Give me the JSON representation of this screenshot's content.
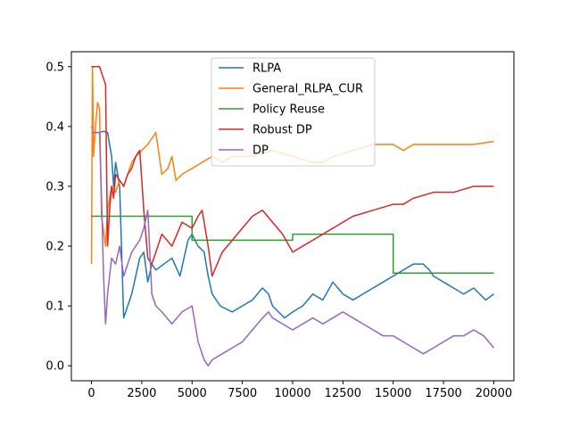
{
  "chart_data": {
    "type": "line",
    "title": "",
    "xlabel": "",
    "ylabel": "",
    "xlim": [
      -1000,
      21000
    ],
    "ylim": [
      -0.025,
      0.525
    ],
    "x_ticks": [
      0,
      2500,
      5000,
      7500,
      10000,
      12500,
      15000,
      17500,
      20000
    ],
    "x_tick_labels": [
      "0",
      "2500",
      "5000",
      "7500",
      "10000",
      "12500",
      "15000",
      "17500",
      "20000"
    ],
    "y_ticks": [
      0.0,
      0.1,
      0.2,
      0.3,
      0.4,
      0.5
    ],
    "y_tick_labels": [
      "0.0",
      "0.1",
      "0.2",
      "0.3",
      "0.4",
      "0.5"
    ],
    "grid": false,
    "legend_position": "top-center",
    "series": [
      {
        "name": "RLPA",
        "color": "#1f77b4",
        "x": [
          0,
          100,
          200,
          400,
          600,
          800,
          1000,
          1100,
          1200,
          1400,
          1600,
          2000,
          2400,
          2600,
          2800,
          3000,
          3200,
          3600,
          4000,
          4400,
          4800,
          5000,
          5300,
          5600,
          5800,
          6000,
          6400,
          7000,
          7500,
          8000,
          8500,
          8800,
          9000,
          9300,
          9600,
          10000,
          10500,
          11000,
          11500,
          12000,
          12500,
          13000,
          13500,
          14000,
          14500,
          15000,
          15500,
          16000,
          16500,
          16800,
          17000,
          17500,
          18000,
          18500,
          19000,
          19300,
          19600,
          20000
        ],
        "y": [
          0.4,
          0.39,
          0.39,
          0.39,
          0.392,
          0.39,
          0.35,
          0.3,
          0.34,
          0.3,
          0.08,
          0.12,
          0.18,
          0.19,
          0.14,
          0.17,
          0.16,
          0.17,
          0.18,
          0.15,
          0.21,
          0.22,
          0.2,
          0.19,
          0.15,
          0.12,
          0.1,
          0.09,
          0.1,
          0.11,
          0.13,
          0.12,
          0.1,
          0.09,
          0.08,
          0.09,
          0.1,
          0.12,
          0.11,
          0.14,
          0.12,
          0.11,
          0.12,
          0.13,
          0.14,
          0.15,
          0.16,
          0.17,
          0.17,
          0.16,
          0.15,
          0.14,
          0.13,
          0.12,
          0.13,
          0.12,
          0.11,
          0.12
        ]
      },
      {
        "name": "General_RLPA_CUR",
        "color": "#ff7f0e",
        "x": [
          0,
          50,
          100,
          200,
          300,
          400,
          500,
          700,
          800,
          1000,
          1200,
          1400,
          1600,
          1800,
          2000,
          2200,
          2500,
          2800,
          3000,
          3200,
          3500,
          3800,
          4000,
          4200,
          4500,
          5000,
          5500,
          6000,
          6500,
          7000,
          8000,
          9000,
          10000,
          11000,
          11500,
          12000,
          13000,
          14000,
          15000,
          15500,
          16000,
          17000,
          18000,
          19000,
          20000
        ],
        "y": [
          0.17,
          0.5,
          0.35,
          0.4,
          0.44,
          0.43,
          0.25,
          0.2,
          0.26,
          0.3,
          0.29,
          0.31,
          0.3,
          0.32,
          0.34,
          0.35,
          0.36,
          0.37,
          0.38,
          0.39,
          0.32,
          0.33,
          0.35,
          0.31,
          0.32,
          0.33,
          0.34,
          0.35,
          0.34,
          0.35,
          0.35,
          0.36,
          0.35,
          0.34,
          0.34,
          0.35,
          0.36,
          0.37,
          0.37,
          0.36,
          0.37,
          0.37,
          0.37,
          0.37,
          0.375
        ]
      },
      {
        "name": "Policy Reuse",
        "color": "#2ca02c",
        "x": [
          0,
          5000,
          5000,
          10000,
          10000,
          15000,
          15000,
          20000
        ],
        "y": [
          0.25,
          0.25,
          0.21,
          0.21,
          0.22,
          0.22,
          0.155,
          0.155
        ]
      },
      {
        "name": "Robust DP",
        "color": "#d62728",
        "x": [
          0,
          200,
          400,
          600,
          700,
          800,
          900,
          1000,
          1100,
          1200,
          1400,
          1600,
          1800,
          2000,
          2200,
          2400,
          2600,
          2800,
          3000,
          3500,
          4000,
          4500,
          5000,
          5300,
          5500,
          5800,
          6000,
          6500,
          7000,
          7500,
          8000,
          8500,
          9000,
          9500,
          10000,
          10500,
          11000,
          12000,
          13000,
          14000,
          15000,
          15500,
          16000,
          17000,
          18000,
          19000,
          19500,
          20000
        ],
        "y": [
          0.5,
          0.5,
          0.5,
          0.48,
          0.47,
          0.2,
          0.26,
          0.3,
          0.28,
          0.32,
          0.31,
          0.3,
          0.32,
          0.33,
          0.35,
          0.36,
          0.26,
          0.18,
          0.17,
          0.22,
          0.2,
          0.24,
          0.23,
          0.25,
          0.26,
          0.2,
          0.15,
          0.19,
          0.21,
          0.23,
          0.25,
          0.26,
          0.24,
          0.22,
          0.19,
          0.2,
          0.21,
          0.23,
          0.25,
          0.26,
          0.27,
          0.27,
          0.28,
          0.29,
          0.29,
          0.3,
          0.3,
          0.3
        ]
      },
      {
        "name": "DP",
        "color": "#9467bd",
        "x": [
          0,
          200,
          400,
          500,
          600,
          700,
          800,
          900,
          1000,
          1200,
          1400,
          1600,
          1800,
          2000,
          2200,
          2400,
          2600,
          2800,
          3000,
          3200,
          3500,
          4000,
          4500,
          5000,
          5300,
          5600,
          5800,
          6000,
          6500,
          7000,
          7500,
          8000,
          8500,
          8800,
          9000,
          9500,
          10000,
          10500,
          11000,
          11500,
          12000,
          12500,
          13000,
          13500,
          14000,
          14500,
          15000,
          15500,
          16000,
          16500,
          17000,
          17500,
          18000,
          18500,
          19000,
          19500,
          20000
        ],
        "y": [
          0.39,
          0.39,
          0.39,
          0.28,
          0.15,
          0.07,
          0.12,
          0.15,
          0.18,
          0.17,
          0.2,
          0.15,
          0.17,
          0.19,
          0.2,
          0.21,
          0.23,
          0.26,
          0.12,
          0.1,
          0.09,
          0.07,
          0.09,
          0.1,
          0.04,
          0.01,
          0.0,
          0.01,
          0.02,
          0.03,
          0.04,
          0.06,
          0.08,
          0.09,
          0.08,
          0.07,
          0.06,
          0.07,
          0.08,
          0.07,
          0.08,
          0.09,
          0.08,
          0.07,
          0.06,
          0.05,
          0.05,
          0.04,
          0.03,
          0.02,
          0.03,
          0.04,
          0.05,
          0.05,
          0.06,
          0.05,
          0.03
        ]
      }
    ]
  }
}
